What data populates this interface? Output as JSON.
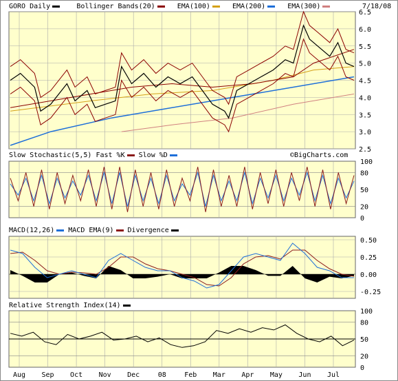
{
  "date": "7/18/08",
  "watermark": "©BigCharts.com",
  "colors": {
    "panel_bg": "#ffffcc",
    "bollinger": "#8b0000",
    "ema100": "#8b0000",
    "ema200": "#d4a017",
    "ema300": "#1e6fd9",
    "pink": "#d08080",
    "fast_k": "#8b1a1a",
    "slow_d": "#1e6fd9",
    "macd": "#1e6fd9",
    "macd_ema": "#8b1a1a",
    "divergence": "#000000"
  },
  "x_labels": [
    "Aug",
    "Sep",
    "Oct",
    "Nov",
    "Dec",
    "08",
    "Feb",
    "Mar",
    "Apr",
    "May",
    "Jun",
    "Jul"
  ],
  "chart_data": [
    {
      "type": "line",
      "title": "GORO Daily",
      "legend": [
        "Bollinger Bands(20)",
        "EMA(100)",
        "EMA(200)",
        "EMA(300)"
      ],
      "y_ticks": [
        "2.5",
        "3.0",
        "3.5",
        "4.0",
        "4.5",
        "5.0",
        "5.5",
        "6.0",
        "6.5"
      ],
      "ylim": [
        2.5,
        6.5
      ],
      "price_path": [
        [
          0,
          4.5
        ],
        [
          5,
          4.7
        ],
        [
          12,
          4.3
        ],
        [
          15,
          3.6
        ],
        [
          20,
          3.8
        ],
        [
          28,
          4.4
        ],
        [
          32,
          3.9
        ],
        [
          38,
          4.2
        ],
        [
          42,
          3.7
        ],
        [
          47,
          3.8
        ],
        [
          52,
          3.9
        ],
        [
          55,
          4.9
        ],
        [
          60,
          4.4
        ],
        [
          66,
          4.7
        ],
        [
          72,
          4.3
        ],
        [
          78,
          4.6
        ],
        [
          84,
          4.4
        ],
        [
          90,
          4.6
        ],
        [
          95,
          4.2
        ],
        [
          100,
          3.8
        ],
        [
          106,
          3.6
        ],
        [
          108,
          3.4
        ],
        [
          112,
          4.2
        ],
        [
          118,
          4.4
        ],
        [
          124,
          4.6
        ],
        [
          130,
          4.8
        ],
        [
          136,
          5.1
        ],
        [
          140,
          5.0
        ],
        [
          145,
          6.1
        ],
        [
          148,
          5.7
        ],
        [
          152,
          5.5
        ],
        [
          158,
          5.2
        ],
        [
          162,
          5.6
        ],
        [
          166,
          5.0
        ],
        [
          170,
          4.9
        ]
      ],
      "ema100_path": [
        [
          0,
          3.7
        ],
        [
          20,
          3.9
        ],
        [
          40,
          4.1
        ],
        [
          60,
          4.3
        ],
        [
          80,
          4.4
        ],
        [
          100,
          4.3
        ],
        [
          120,
          4.4
        ],
        [
          140,
          4.6
        ],
        [
          150,
          5.0
        ],
        [
          170,
          5.4
        ]
      ],
      "ema200_path": [
        [
          0,
          3.6
        ],
        [
          40,
          3.9
        ],
        [
          70,
          4.1
        ],
        [
          100,
          4.2
        ],
        [
          130,
          4.5
        ],
        [
          150,
          4.8
        ],
        [
          170,
          4.9
        ]
      ],
      "ema300_path": [
        [
          0,
          2.6
        ],
        [
          20,
          3.0
        ],
        [
          50,
          3.4
        ],
        [
          80,
          3.7
        ],
        [
          110,
          4.0
        ],
        [
          140,
          4.3
        ],
        [
          170,
          4.6
        ]
      ],
      "pink_path": [
        [
          55,
          3.0
        ],
        [
          80,
          3.2
        ],
        [
          110,
          3.4
        ],
        [
          140,
          3.8
        ],
        [
          170,
          4.1
        ]
      ]
    },
    {
      "type": "line",
      "title": "Slow Stochastic(5,5)",
      "legend": [
        "Fast %K",
        "Slow %D"
      ],
      "y_ticks": [
        "0",
        "20",
        "50",
        "80",
        "100"
      ],
      "ylim": [
        0,
        100
      ],
      "k": [
        70,
        30,
        80,
        20,
        85,
        15,
        80,
        25,
        75,
        30,
        85,
        20,
        90,
        15,
        90,
        10,
        85,
        20,
        80,
        15,
        85,
        20,
        70,
        30,
        90,
        10,
        85,
        20,
        75,
        20,
        90,
        15,
        80,
        25,
        85,
        20,
        80,
        30,
        90,
        20,
        85,
        15,
        80,
        25,
        75
      ],
      "d": [
        60,
        40,
        70,
        30,
        75,
        25,
        70,
        35,
        65,
        40,
        75,
        30,
        80,
        25,
        80,
        20,
        75,
        30,
        70,
        25,
        75,
        30,
        60,
        40,
        80,
        20,
        75,
        30,
        65,
        30,
        80,
        25,
        70,
        35,
        75,
        30,
        70,
        40,
        80,
        30,
        75,
        25,
        70,
        35,
        65
      ]
    },
    {
      "type": "line",
      "title": "MACD(12,26)",
      "legend": [
        "MACD EMA(9)",
        "Divergence"
      ],
      "y_ticks": [
        "0.50",
        "0.25",
        "0.00",
        "-0.25"
      ],
      "ylim": [
        -0.35,
        0.55
      ],
      "macd": [
        0.35,
        0.3,
        0.1,
        -0.05,
        0.0,
        0.05,
        0.0,
        -0.05,
        0.2,
        0.3,
        0.2,
        0.1,
        0.05,
        0.05,
        -0.05,
        -0.1,
        -0.2,
        -0.15,
        0.05,
        0.25,
        0.3,
        0.25,
        0.2,
        0.45,
        0.3,
        0.1,
        0.05,
        -0.05,
        -0.05
      ],
      "signal": [
        0.3,
        0.32,
        0.2,
        0.05,
        0.0,
        0.03,
        0.02,
        0.0,
        0.1,
        0.25,
        0.25,
        0.15,
        0.08,
        0.05,
        0.0,
        -0.05,
        -0.15,
        -0.17,
        -0.05,
        0.15,
        0.25,
        0.27,
        0.22,
        0.35,
        0.35,
        0.2,
        0.08,
        0.0,
        -0.03
      ]
    },
    {
      "type": "line",
      "title": "Relative Strength Index(14)",
      "legend": [],
      "y_ticks": [
        "100",
        "80",
        "50",
        "20",
        "0"
      ],
      "ylim": [
        0,
        100
      ],
      "rsi": [
        60,
        55,
        62,
        45,
        40,
        58,
        50,
        55,
        62,
        48,
        50,
        55,
        45,
        52,
        40,
        35,
        38,
        45,
        65,
        60,
        68,
        62,
        70,
        66,
        75,
        60,
        50,
        45,
        55,
        38,
        48
      ]
    }
  ]
}
